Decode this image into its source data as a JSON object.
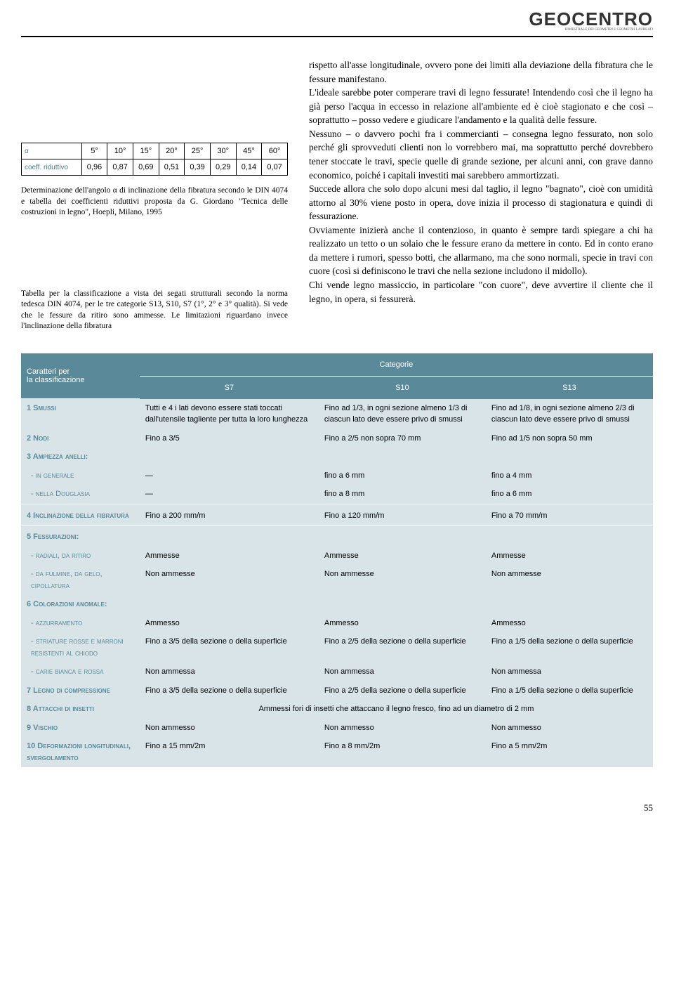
{
  "brand": {
    "name": "GEOCENTRO",
    "sub": "BIMESTRALE DEI GEOMETRI E GEOMETRI LAUREATI"
  },
  "smallTable": {
    "rowLabels": [
      "α",
      "coeff. riduttivo"
    ],
    "headers": [
      "5°",
      "10°",
      "15°",
      "20°",
      "25°",
      "30°",
      "45°",
      "60°"
    ],
    "values": [
      "0,96",
      "0,87",
      "0,69",
      "0,51",
      "0,39",
      "0,29",
      "0,14",
      "0,07"
    ]
  },
  "caption1": "Determinazione dell'angolo α di inclinazione della fibratura secondo le DIN 4074 e tabella dei coefficienti riduttivi proposta da G. Giordano \"Tecnica delle costruzioni in legno\", Hoepli, Milano, 1995",
  "caption2": "Tabella per la classificazione a vista dei segati strutturali secondo la norma tedesca DIN 4074, per le tre categorie S13, S10, S7 (1°, 2° e 3° qualità). Si vede che le fessure da ritiro sono ammesse. Le limitazioni riguardano invece l'inclinazione della fibratura",
  "bodyText": {
    "p1": "rispetto all'asse longitudinale, ovvero pone dei limiti alla deviazione della fibratura che le fessure manifestano.",
    "p2": "L'ideale sarebbe poter comperare travi di legno fessurate! Intendendo così che il legno ha già perso l'acqua in eccesso in relazione all'ambiente ed è cioè stagionato e che così – soprattutto – posso vedere e giudicare l'andamento e la qualità delle fessure.",
    "p3": "Nessuno – o davvero pochi fra i commercianti – consegna legno fessurato, non solo perché gli sprovveduti clienti non lo vorrebbero mai, ma soprattutto perché dovrebbero tener stoccate le travi, specie quelle di grande sezione, per alcuni anni, con grave danno economico, poiché i capitali investiti mai sarebbero ammortizzati.",
    "p4": "Succede allora che solo dopo alcuni mesi dal taglio, il legno \"bagnato\", cioè con umidità attorno al 30% viene posto in opera, dove inizia il processo di stagionatura e quindi di fessurazione.",
    "p5": "Ovviamente inizierà anche il contenzioso, in quanto è sempre tardi spiegare a chi ha realizzato un tetto o un solaio che le fessure erano da mettere in conto. Ed in conto erano da mettere i rumori, spesso botti, che allarmano, ma che sono normali, specie in travi con cuore (così si definiscono le travi che nella sezione includono il midollo).",
    "p6": "Chi vende legno massiccio, in particolare \"con cuore\", deve avvertire il cliente che il legno, in opera, si fessurerà."
  },
  "bigTable": {
    "leftHeader1": "Caratteri per",
    "leftHeader2": "la classificazione",
    "catHeader": "Categorie",
    "cats": [
      "S7",
      "S10",
      "S13"
    ],
    "rows": {
      "r1": {
        "label": "1 Smussi",
        "s7": "Tutti e 4 i lati devono essere stati toccati dall'utensile tagliente per tutta la loro lunghezza",
        "s10": "Fino ad 1/3, in ogni sezione almeno 1/3 di ciascun lato deve essere privo di smussi",
        "s13": "Fino ad 1/8, in ogni sezione almeno 2/3 di ciascun lato deve essere privo di smussi"
      },
      "r2": {
        "label": "2 Nodi",
        "s7": "Fino a 3/5",
        "s10": "Fino a 2/5 non sopra 70 mm",
        "s13": "Fino ad 1/5 non sopra 50 mm"
      },
      "r3": {
        "label": "3 Ampiezza anelli:"
      },
      "r3a": {
        "label": "- in generale",
        "s7": "—",
        "s10": "fino a 6 mm",
        "s13": "fino a 4 mm"
      },
      "r3b": {
        "label": "- nella Douglasia",
        "s7": "—",
        "s10": "fino a 8 mm",
        "s13": "fino a 6 mm"
      },
      "r4": {
        "label": "4 Inclinazione della fibratura",
        "s7": "Fino a 200 mm/m",
        "s10": "Fino a 120 mm/m",
        "s13": "Fino a 70 mm/m"
      },
      "r5": {
        "label": "5 Fessurazioni:"
      },
      "r5a": {
        "label": "- radiali, da ritiro",
        "s7": "Ammesse",
        "s10": "Ammesse",
        "s13": "Ammesse"
      },
      "r5b": {
        "label": "- da fulmine, da gelo, cipollatura",
        "s7": "Non ammesse",
        "s10": "Non ammesse",
        "s13": "Non ammesse"
      },
      "r6": {
        "label": "6 Colorazioni anomale:"
      },
      "r6a": {
        "label": "- azzurramento",
        "s7": "Ammesso",
        "s10": "Ammesso",
        "s13": "Ammesso"
      },
      "r6b": {
        "label": "- striature rosse e marroni resistenti al chiodo",
        "s7": "Fino a 3/5 della sezione o della superficie",
        "s10": "Fino a 2/5 della sezione o della superficie",
        "s13": "Fino a 1/5 della sezione o della superficie"
      },
      "r6c": {
        "label": "- carie bianca e rossa",
        "s7": "Non ammessa",
        "s10": "Non ammessa",
        "s13": "Non ammessa"
      },
      "r7": {
        "label": "7 Legno di compressione",
        "s7": "Fino a 3/5 della sezione o della superficie",
        "s10": "Fino a 2/5 della sezione o della superficie",
        "s13": "Fino a 1/5 della sezione o della superficie"
      },
      "r8": {
        "label": "8 Attacchi di insetti",
        "merged": "Ammessi fori di insetti che attaccano il legno fresco, fino ad un diametro di 2 mm"
      },
      "r9": {
        "label": "9 Vischio",
        "s7": "Non ammesso",
        "s10": "Non ammesso",
        "s13": "Non ammesso"
      },
      "r10": {
        "label": "10 Deformazioni longitudinali, svergolamento",
        "s7": "Fino a 15 mm/2m",
        "s10": "Fino a 8 mm/2m",
        "s13": "Fino a 5 mm/2m"
      }
    }
  },
  "pageNum": "55"
}
